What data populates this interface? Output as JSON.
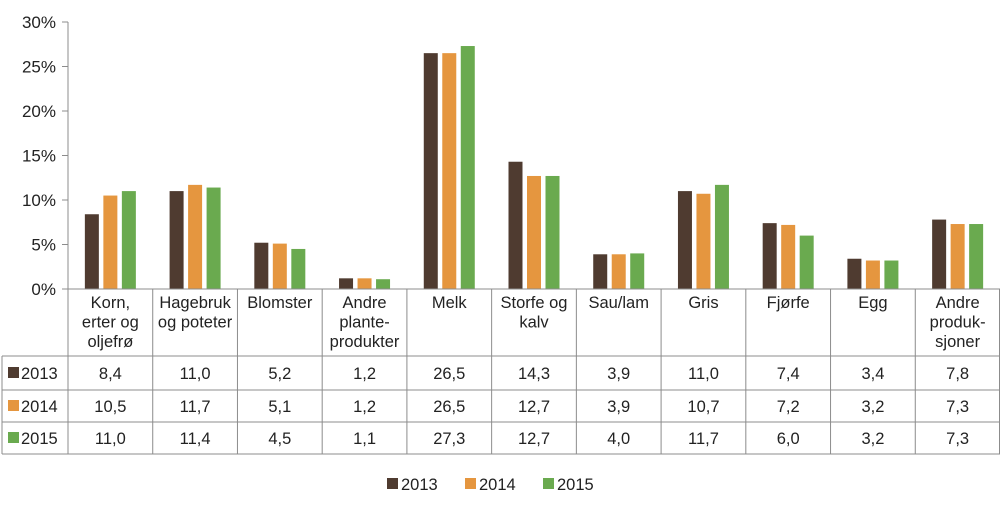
{
  "chart_data": {
    "type": "bar",
    "categories": [
      [
        "Korn,",
        "erter og",
        "oljefrø"
      ],
      [
        "Hagebruk",
        "og poteter"
      ],
      [
        "Blomster"
      ],
      [
        "Andre",
        "plante-",
        "produkter"
      ],
      [
        "Melk"
      ],
      [
        "Storfe og",
        "kalv"
      ],
      [
        "Sau/lam"
      ],
      [
        "Gris"
      ],
      [
        "Fjørfe"
      ],
      [
        "Egg"
      ],
      [
        "Andre",
        "produk-",
        "sjoner"
      ]
    ],
    "series": [
      {
        "name": "2013",
        "color": "#4f3b30",
        "values": [
          8.4,
          11.0,
          5.2,
          1.2,
          26.5,
          14.3,
          3.9,
          11.0,
          7.4,
          3.4,
          7.8
        ],
        "labels": [
          "8,4",
          "11,0",
          "5,2",
          "1,2",
          "26,5",
          "14,3",
          "3,9",
          "11,0",
          "7,4",
          "3,4",
          "7,8"
        ]
      },
      {
        "name": "2014",
        "color": "#e5963f",
        "values": [
          10.5,
          11.7,
          5.1,
          1.2,
          26.5,
          12.7,
          3.9,
          10.7,
          7.2,
          3.2,
          7.3
        ],
        "labels": [
          "10,5",
          "11,7",
          "5,1",
          "1,2",
          "26,5",
          "12,7",
          "3,9",
          "10,7",
          "7,2",
          "3,2",
          "7,3"
        ]
      },
      {
        "name": "2015",
        "color": "#6aaa4f",
        "values": [
          11.0,
          11.4,
          4.5,
          1.1,
          27.3,
          12.7,
          4.0,
          11.7,
          6.0,
          3.2,
          7.3
        ],
        "labels": [
          "11,0",
          "11,4",
          "4,5",
          "1,1",
          "27,3",
          "12,7",
          "4,0",
          "11,7",
          "6,0",
          "3,2",
          "7,3"
        ]
      }
    ],
    "yticks": [
      "0%",
      "5%",
      "10%",
      "15%",
      "20%",
      "25%",
      "30%"
    ],
    "ylim": [
      0,
      30
    ],
    "grid": false,
    "legend": "bottom-center",
    "table": true
  }
}
